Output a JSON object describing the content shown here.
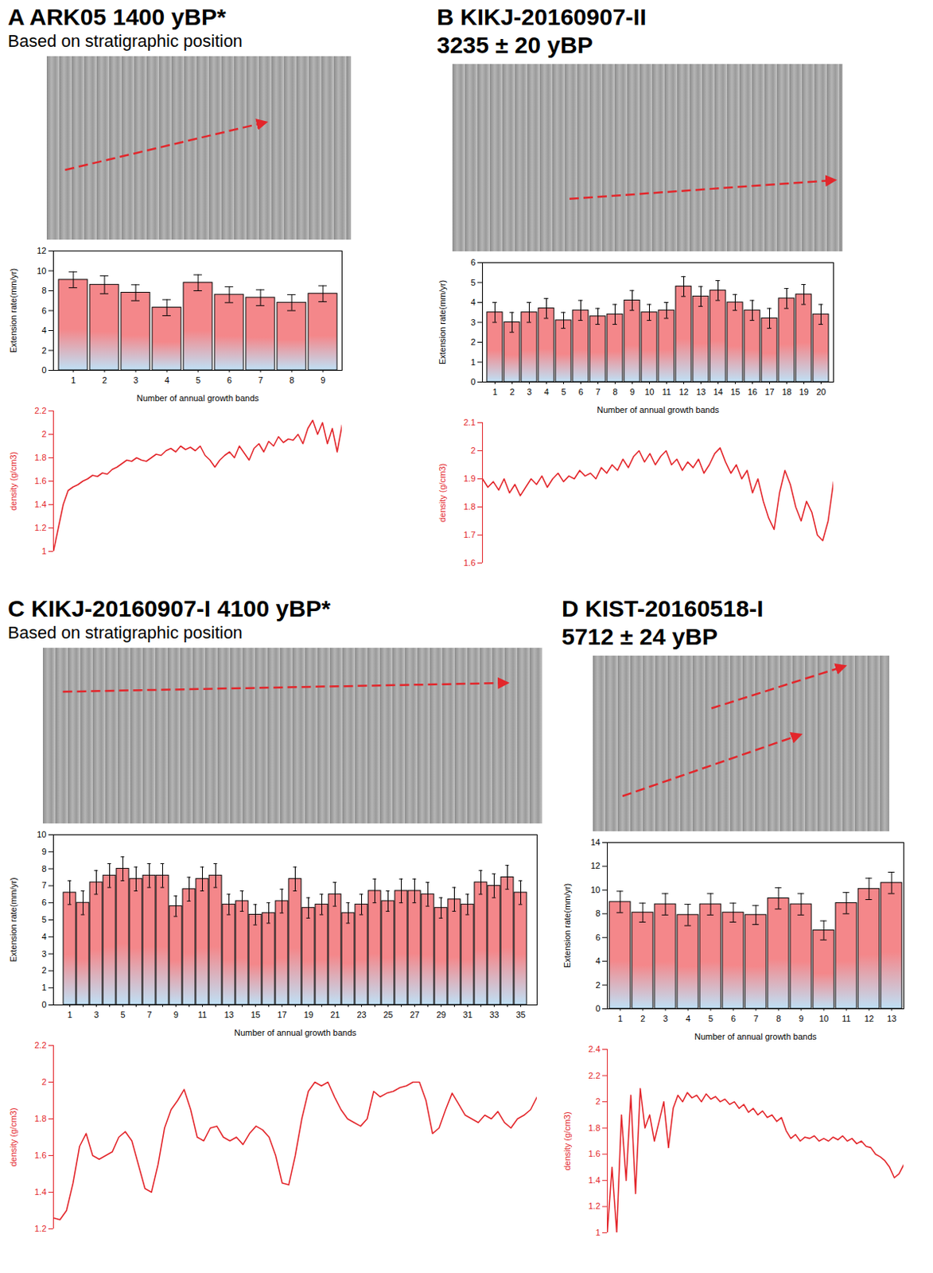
{
  "chart_data": [
    {
      "type": "bar",
      "title": "A ARK05 1400 yBP*",
      "subtitle": "Based on stratigraphic position",
      "categories": [
        "1",
        "2",
        "3",
        "4",
        "5",
        "6",
        "7",
        "8",
        "9"
      ],
      "values": [
        9.1,
        8.6,
        7.8,
        6.3,
        8.8,
        7.6,
        7.3,
        6.8,
        7.7
      ],
      "errors": [
        0.8,
        0.9,
        0.8,
        0.8,
        0.8,
        0.8,
        0.8,
        0.8,
        0.8
      ],
      "color": "#f4878a",
      "ylim": [
        0,
        12
      ],
      "yticks": [
        0,
        2,
        4,
        6,
        8,
        10,
        12
      ],
      "ylabel": "Extension rate(mm/yr)",
      "xlabel": "Number of annual growth bands"
    },
    {
      "type": "line",
      "color": "#e3262b",
      "tick_labels": "y",
      "values": [
        1.0,
        1.2,
        1.4,
        1.52,
        1.55,
        1.57,
        1.6,
        1.62,
        1.65,
        1.64,
        1.67,
        1.66,
        1.7,
        1.72,
        1.75,
        1.78,
        1.77,
        1.8,
        1.78,
        1.77,
        1.8,
        1.83,
        1.82,
        1.86,
        1.88,
        1.85,
        1.9,
        1.87,
        1.89,
        1.86,
        1.9,
        1.82,
        1.78,
        1.72,
        1.78,
        1.82,
        1.85,
        1.8,
        1.9,
        1.84,
        1.78,
        1.88,
        1.92,
        1.85,
        1.94,
        1.9,
        1.98,
        1.93,
        1.96,
        1.95,
        2.0,
        1.92,
        2.05,
        2.12,
        2.0,
        2.1,
        1.92,
        2.05,
        1.85,
        2.08
      ],
      "ylim": [
        1,
        2.2
      ],
      "yticks": [
        1,
        1.2,
        1.4,
        1.6,
        1.8,
        2,
        2.2
      ],
      "ylabel": "density (g/cm3)"
    },
    {
      "type": "bar",
      "title": "B KIKJ-20160907-II 3235 ± 20 yBP",
      "categories": [
        "1",
        "2",
        "3",
        "4",
        "5",
        "6",
        "7",
        "8",
        "9",
        "10",
        "11",
        "12",
        "13",
        "14",
        "15",
        "16",
        "17",
        "18",
        "19",
        "20"
      ],
      "values": [
        3.5,
        3.0,
        3.5,
        3.7,
        3.1,
        3.6,
        3.3,
        3.4,
        4.1,
        3.5,
        3.6,
        4.8,
        4.3,
        4.6,
        4.0,
        3.6,
        3.2,
        4.2,
        4.4,
        3.4
      ],
      "errors": [
        0.5,
        0.5,
        0.5,
        0.5,
        0.4,
        0.5,
        0.4,
        0.5,
        0.5,
        0.4,
        0.4,
        0.5,
        0.5,
        0.5,
        0.4,
        0.5,
        0.5,
        0.5,
        0.5,
        0.5
      ],
      "color": "#f4878a",
      "ylim": [
        0,
        6
      ],
      "yticks": [
        0,
        1,
        2,
        3,
        4,
        5,
        6
      ],
      "ylabel": "Extension rate(mm/yr)",
      "xlabel": "Number of annual growth bands"
    },
    {
      "type": "line",
      "color": "#e3262b",
      "tick_labels": "y",
      "values": [
        1.9,
        1.87,
        1.89,
        1.86,
        1.9,
        1.85,
        1.88,
        1.84,
        1.87,
        1.9,
        1.88,
        1.91,
        1.87,
        1.9,
        1.92,
        1.89,
        1.91,
        1.9,
        1.93,
        1.91,
        1.92,
        1.9,
        1.94,
        1.92,
        1.95,
        1.93,
        1.97,
        1.94,
        1.98,
        2.0,
        1.96,
        1.99,
        1.95,
        1.98,
        2.0,
        1.95,
        1.97,
        1.93,
        1.96,
        1.94,
        1.97,
        1.92,
        1.95,
        1.99,
        2.01,
        1.96,
        1.92,
        1.95,
        1.9,
        1.93,
        1.85,
        1.9,
        1.82,
        1.76,
        1.72,
        1.85,
        1.93,
        1.88,
        1.8,
        1.75,
        1.82,
        1.78,
        1.7,
        1.68,
        1.75,
        1.89
      ],
      "ylim": [
        1.6,
        2.1
      ],
      "yticks": [
        1.6,
        1.7,
        1.8,
        1.9,
        2,
        2.1
      ],
      "ylabel": "density (g/cm3)"
    },
    {
      "type": "bar",
      "title": "C KIKJ-20160907-I  4100 yBP*",
      "subtitle": "Based on stratigraphic position",
      "categories": [
        "1",
        null,
        "3",
        null,
        "5",
        null,
        "7",
        null,
        "9",
        null,
        "11",
        null,
        "13",
        null,
        "15",
        null,
        "17",
        null,
        "19",
        null,
        "21",
        null,
        "23",
        null,
        "25",
        null,
        "27",
        null,
        "29",
        null,
        "31",
        null,
        "33",
        null,
        "35"
      ],
      "values": [
        6.6,
        6.0,
        7.2,
        7.6,
        8.0,
        7.4,
        7.6,
        7.6,
        5.8,
        6.8,
        7.4,
        7.6,
        5.9,
        6.1,
        5.3,
        5.4,
        6.1,
        7.4,
        5.7,
        5.9,
        6.5,
        5.4,
        5.9,
        6.7,
        6.1,
        6.7,
        6.7,
        6.5,
        5.7,
        6.2,
        5.9,
        7.2,
        7.0,
        7.5,
        6.6
      ],
      "errors": [
        0.7,
        0.7,
        0.7,
        0.7,
        0.7,
        0.7,
        0.7,
        0.7,
        0.6,
        0.7,
        0.7,
        0.7,
        0.6,
        0.6,
        0.6,
        0.6,
        0.7,
        0.7,
        0.6,
        0.6,
        0.7,
        0.6,
        0.6,
        0.7,
        0.6,
        0.7,
        0.7,
        0.7,
        0.6,
        0.7,
        0.6,
        0.7,
        0.7,
        0.7,
        0.7
      ],
      "color": "#f4878a",
      "ylim": [
        0,
        10
      ],
      "yticks": [
        0,
        1,
        2,
        3,
        4,
        5,
        6,
        7,
        8,
        9,
        10
      ],
      "ylabel": "Extension rate(mm/yr)",
      "xlabel": "Number of annual growth bands"
    },
    {
      "type": "line",
      "color": "#e3262b",
      "tick_labels": "y",
      "values": [
        1.26,
        1.25,
        1.3,
        1.45,
        1.65,
        1.72,
        1.6,
        1.58,
        1.6,
        1.62,
        1.7,
        1.73,
        1.68,
        1.55,
        1.42,
        1.4,
        1.55,
        1.75,
        1.85,
        1.9,
        1.96,
        1.85,
        1.7,
        1.68,
        1.75,
        1.76,
        1.7,
        1.68,
        1.7,
        1.66,
        1.72,
        1.76,
        1.74,
        1.7,
        1.6,
        1.45,
        1.44,
        1.6,
        1.8,
        1.95,
        2.0,
        1.98,
        2.0,
        1.92,
        1.85,
        1.8,
        1.78,
        1.76,
        1.8,
        1.95,
        1.92,
        1.94,
        1.95,
        1.97,
        1.98,
        2.0,
        2.0,
        1.9,
        1.72,
        1.75,
        1.85,
        1.94,
        1.88,
        1.82,
        1.8,
        1.78,
        1.82,
        1.8,
        1.84,
        1.78,
        1.75,
        1.8,
        1.82,
        1.85,
        1.92
      ],
      "ylim": [
        1.2,
        2.2
      ],
      "yticks": [
        1.2,
        1.4,
        1.6,
        1.8,
        2,
        2.2
      ],
      "ylabel": "density (g/cm3)"
    },
    {
      "type": "bar",
      "title": "D KIST-20160518-I 5712 ± 24 yBP",
      "categories": [
        "1",
        "2",
        "3",
        "4",
        "5",
        "6",
        "7",
        "8",
        "9",
        "10",
        "11",
        "12",
        "13"
      ],
      "values": [
        9.0,
        8.1,
        8.8,
        7.9,
        8.8,
        8.1,
        7.9,
        9.3,
        8.8,
        6.6,
        8.9,
        10.1,
        10.6
      ],
      "errors": [
        0.9,
        0.8,
        0.9,
        0.9,
        0.9,
        0.8,
        0.8,
        0.9,
        0.9,
        0.8,
        0.9,
        0.9,
        0.9
      ],
      "color": "#f4878a",
      "ylim": [
        0,
        14
      ],
      "yticks": [
        0,
        2,
        4,
        6,
        8,
        10,
        12,
        14
      ],
      "ylabel": "Extension rate(mm/yr)",
      "xlabel": "Number of annual growth bands"
    },
    {
      "type": "line",
      "color": "#e3262b",
      "tick_labels": "y",
      "values": [
        1.0,
        1.5,
        1.0,
        1.9,
        1.4,
        2.05,
        1.3,
        2.1,
        1.8,
        1.9,
        1.7,
        1.85,
        2.0,
        1.65,
        1.95,
        2.05,
        2.0,
        2.07,
        2.03,
        2.05,
        2.0,
        2.06,
        2.02,
        2.04,
        2.0,
        2.02,
        1.98,
        2.0,
        1.95,
        1.98,
        1.92,
        1.95,
        1.9,
        1.93,
        1.88,
        1.9,
        1.85,
        1.88,
        1.78,
        1.72,
        1.75,
        1.7,
        1.73,
        1.72,
        1.74,
        1.7,
        1.72,
        1.7,
        1.73,
        1.71,
        1.74,
        1.7,
        1.72,
        1.68,
        1.7,
        1.66,
        1.65,
        1.6,
        1.58,
        1.55,
        1.5,
        1.42,
        1.45,
        1.52
      ],
      "ylim": [
        1,
        2.4
      ],
      "yticks": [
        1,
        1.2,
        1.4,
        1.6,
        1.8,
        2,
        2.2,
        2.4
      ],
      "ylabel": "density (g/cm3)"
    }
  ]
}
